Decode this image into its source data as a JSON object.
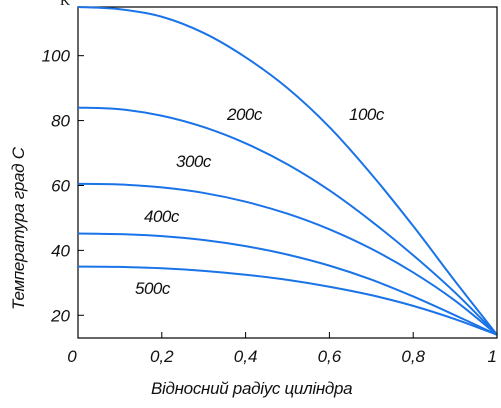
{
  "corner_text": "K",
  "chart_data": {
    "type": "line",
    "title": "",
    "xlabel": "Відносний радіус циліндра",
    "ylabel": "Температура град С",
    "xlim": [
      0,
      1
    ],
    "ylim": [
      13,
      115
    ],
    "xticks": [
      0,
      0.2,
      0.4,
      0.6,
      0.8,
      1
    ],
    "xtick_labels": [
      "0",
      "0,2",
      "0,4",
      "0,6",
      "0,8",
      "1"
    ],
    "yticks": [
      20,
      40,
      60,
      80,
      100
    ],
    "ytick_labels": [
      "20",
      "40",
      "60",
      "80",
      "100"
    ],
    "grid": false,
    "line_color": "#1a73e8",
    "series": [
      {
        "name": "100с",
        "x": [
          0,
          0.1,
          0.2,
          0.3,
          0.4,
          0.5,
          0.6,
          0.7,
          0.8,
          0.9,
          1.0
        ],
        "y": [
          115,
          114.3,
          112,
          107,
          99.5,
          90,
          78,
          63.5,
          47.5,
          30.5,
          14
        ]
      },
      {
        "name": "200с",
        "x": [
          0,
          0.1,
          0.2,
          0.3,
          0.4,
          0.5,
          0.6,
          0.7,
          0.8,
          0.9,
          1.0
        ],
        "y": [
          84,
          83.5,
          81.5,
          78,
          73,
          66.5,
          58.5,
          49,
          38.5,
          27,
          14
        ]
      },
      {
        "name": "300с",
        "x": [
          0,
          0.1,
          0.2,
          0.3,
          0.4,
          0.5,
          0.6,
          0.7,
          0.8,
          0.9,
          1.0
        ],
        "y": [
          60.5,
          60.3,
          59.4,
          57.7,
          55,
          51.3,
          46.5,
          40.5,
          33.2,
          24.5,
          14
        ]
      },
      {
        "name": "400с",
        "x": [
          0,
          0.1,
          0.2,
          0.3,
          0.4,
          0.5,
          0.6,
          0.7,
          0.8,
          0.9,
          1.0
        ],
        "y": [
          45.2,
          45,
          44.4,
          43.2,
          41.3,
          38.7,
          35.3,
          31,
          25.8,
          20,
          14
        ]
      },
      {
        "name": "500с",
        "x": [
          0,
          0.1,
          0.2,
          0.3,
          0.4,
          0.5,
          0.6,
          0.7,
          0.8,
          0.9,
          1.0
        ],
        "y": [
          35,
          34.9,
          34.5,
          33.7,
          32.5,
          30.9,
          28.8,
          26.2,
          22.9,
          18.8,
          14
        ]
      }
    ],
    "annotations": [
      "200с",
      "100с",
      "300с",
      "400с",
      "500с"
    ]
  }
}
